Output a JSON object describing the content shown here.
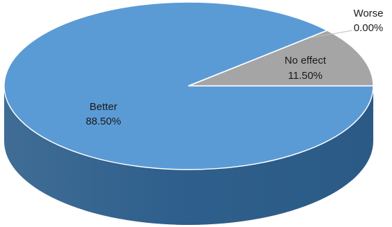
{
  "chart_data": {
    "type": "pie",
    "style": "3d",
    "categories": [
      "Better",
      "No effect",
      "Worse"
    ],
    "values": [
      88.5,
      11.5,
      0.0
    ],
    "value_labels": [
      "88.50%",
      "11.50%",
      "0.00%"
    ],
    "colors": [
      "#5b9bd5",
      "#a5a5a5",
      "#ffc000"
    ],
    "legend": "none"
  }
}
